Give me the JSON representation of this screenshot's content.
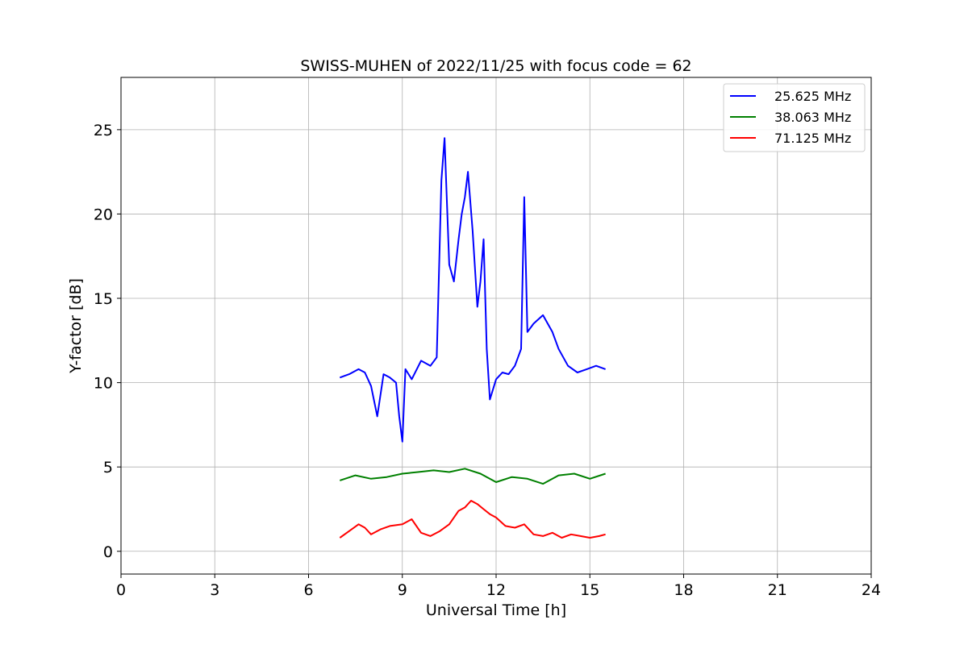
{
  "chart_data": {
    "type": "line",
    "title": "SWISS-MUHEN of 2022/11/25 with focus code = 62",
    "xlabel": "Universal Time [h]",
    "ylabel": "Y-factor [dB]",
    "xlim": [
      0,
      24
    ],
    "ylim": [
      -1.35,
      28.1
    ],
    "xticks": [
      0,
      3,
      6,
      9,
      12,
      15,
      18,
      21,
      24
    ],
    "yticks": [
      0,
      5,
      10,
      15,
      20,
      25
    ],
    "grid": true,
    "legend_position": "top-right",
    "series": [
      {
        "name": "25.625 MHz",
        "color": "#0000ff",
        "x": [
          7.0,
          7.3,
          7.6,
          7.8,
          8.0,
          8.2,
          8.4,
          8.6,
          8.8,
          8.9,
          9.0,
          9.1,
          9.3,
          9.6,
          9.9,
          10.1,
          10.25,
          10.35,
          10.5,
          10.65,
          10.8,
          10.9,
          11.0,
          11.1,
          11.25,
          11.4,
          11.5,
          11.6,
          11.7,
          11.8,
          12.0,
          12.2,
          12.4,
          12.6,
          12.8,
          12.9,
          13.0,
          13.2,
          13.5,
          13.8,
          14.0,
          14.3,
          14.6,
          14.9,
          15.2,
          15.5
        ],
        "y": [
          10.3,
          10.5,
          10.8,
          10.6,
          9.8,
          8.0,
          10.5,
          10.3,
          10.0,
          8.0,
          6.5,
          10.8,
          10.2,
          11.3,
          11.0,
          11.5,
          22.0,
          24.5,
          17.0,
          16.0,
          18.5,
          20.0,
          21.0,
          22.5,
          19.0,
          14.5,
          16.0,
          18.5,
          12.0,
          9.0,
          10.2,
          10.6,
          10.5,
          11.0,
          12.0,
          21.0,
          13.0,
          13.5,
          14.0,
          13.0,
          12.0,
          11.0,
          10.6,
          10.8,
          11.0,
          10.8
        ]
      },
      {
        "name": "38.063 MHz",
        "color": "#008000",
        "x": [
          7.0,
          7.5,
          8.0,
          8.5,
          9.0,
          9.5,
          10.0,
          10.5,
          11.0,
          11.5,
          12.0,
          12.5,
          13.0,
          13.5,
          14.0,
          14.5,
          15.0,
          15.5
        ],
        "y": [
          4.2,
          4.5,
          4.3,
          4.4,
          4.6,
          4.7,
          4.8,
          4.7,
          4.9,
          4.6,
          4.1,
          4.4,
          4.3,
          4.0,
          4.5,
          4.6,
          4.3,
          4.6
        ]
      },
      {
        "name": "71.125 MHz",
        "color": "#ff0000",
        "x": [
          7.0,
          7.3,
          7.6,
          7.8,
          8.0,
          8.3,
          8.6,
          9.0,
          9.3,
          9.6,
          9.9,
          10.2,
          10.5,
          10.8,
          11.0,
          11.2,
          11.4,
          11.6,
          11.8,
          12.0,
          12.3,
          12.6,
          12.9,
          13.2,
          13.5,
          13.8,
          14.1,
          14.4,
          14.7,
          15.0,
          15.3,
          15.5
        ],
        "y": [
          0.8,
          1.2,
          1.6,
          1.4,
          1.0,
          1.3,
          1.5,
          1.6,
          1.9,
          1.1,
          0.9,
          1.2,
          1.6,
          2.4,
          2.6,
          3.0,
          2.8,
          2.5,
          2.2,
          2.0,
          1.5,
          1.4,
          1.6,
          1.0,
          0.9,
          1.1,
          0.8,
          1.0,
          0.9,
          0.8,
          0.9,
          1.0
        ]
      }
    ]
  }
}
